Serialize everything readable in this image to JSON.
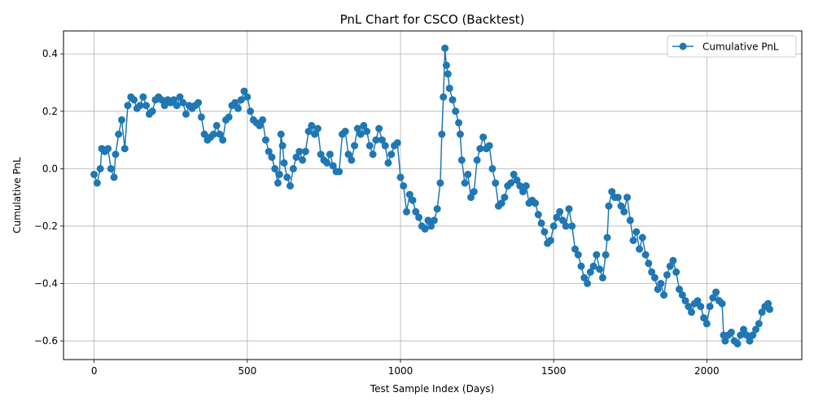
{
  "chart_data": {
    "type": "line",
    "title": "PnL Chart for CSCO (Backtest)",
    "xlabel": "Test Sample Index (Days)",
    "ylabel": "Cumulative PnL",
    "xlim": [
      -100,
      2310
    ],
    "ylim": [
      -0.665,
      0.48
    ],
    "xticks": [
      0,
      500,
      1000,
      1500,
      2000
    ],
    "xtick_labels": [
      "0",
      "500",
      "1000",
      "1500",
      "2000"
    ],
    "yticks": [
      -0.6,
      -0.4,
      -0.2,
      0.0,
      0.2,
      0.4
    ],
    "ytick_labels": [
      "−0.6",
      "−0.4",
      "−0.2",
      "0.0",
      "0.2",
      "0.4"
    ],
    "grid": true,
    "legend_position": "top-right",
    "series": [
      {
        "name": "Cumulative PnL",
        "color": "#1f77b4",
        "marker": "circle",
        "points": [
          [
            0,
            -0.02
          ],
          [
            10,
            -0.05
          ],
          [
            20,
            0.0
          ],
          [
            25,
            0.07
          ],
          [
            35,
            0.06
          ],
          [
            45,
            0.07
          ],
          [
            55,
            0.0
          ],
          [
            65,
            -0.03
          ],
          [
            70,
            0.05
          ],
          [
            80,
            0.12
          ],
          [
            90,
            0.17
          ],
          [
            100,
            0.07
          ],
          [
            110,
            0.22
          ],
          [
            120,
            0.25
          ],
          [
            130,
            0.24
          ],
          [
            140,
            0.21
          ],
          [
            150,
            0.22
          ],
          [
            160,
            0.25
          ],
          [
            170,
            0.22
          ],
          [
            180,
            0.19
          ],
          [
            190,
            0.2
          ],
          [
            200,
            0.24
          ],
          [
            210,
            0.25
          ],
          [
            220,
            0.24
          ],
          [
            230,
            0.22
          ],
          [
            240,
            0.24
          ],
          [
            250,
            0.23
          ],
          [
            260,
            0.24
          ],
          [
            270,
            0.22
          ],
          [
            280,
            0.25
          ],
          [
            290,
            0.23
          ],
          [
            300,
            0.19
          ],
          [
            310,
            0.22
          ],
          [
            320,
            0.21
          ],
          [
            330,
            0.22
          ],
          [
            340,
            0.23
          ],
          [
            350,
            0.18
          ],
          [
            360,
            0.12
          ],
          [
            370,
            0.1
          ],
          [
            380,
            0.11
          ],
          [
            390,
            0.12
          ],
          [
            400,
            0.15
          ],
          [
            410,
            0.12
          ],
          [
            420,
            0.1
          ],
          [
            430,
            0.17
          ],
          [
            440,
            0.18
          ],
          [
            450,
            0.22
          ],
          [
            460,
            0.23
          ],
          [
            470,
            0.21
          ],
          [
            480,
            0.24
          ],
          [
            490,
            0.27
          ],
          [
            500,
            0.25
          ],
          [
            510,
            0.2
          ],
          [
            520,
            0.17
          ],
          [
            530,
            0.16
          ],
          [
            540,
            0.15
          ],
          [
            550,
            0.17
          ],
          [
            560,
            0.1
          ],
          [
            570,
            0.06
          ],
          [
            580,
            0.04
          ],
          [
            590,
            0.0
          ],
          [
            600,
            -0.05
          ],
          [
            605,
            -0.02
          ],
          [
            610,
            0.12
          ],
          [
            615,
            0.08
          ],
          [
            620,
            0.02
          ],
          [
            630,
            -0.03
          ],
          [
            640,
            -0.06
          ],
          [
            650,
            0.0
          ],
          [
            660,
            0.04
          ],
          [
            670,
            0.06
          ],
          [
            680,
            0.03
          ],
          [
            690,
            0.06
          ],
          [
            700,
            0.13
          ],
          [
            710,
            0.15
          ],
          [
            720,
            0.12
          ],
          [
            730,
            0.14
          ],
          [
            740,
            0.05
          ],
          [
            750,
            0.03
          ],
          [
            760,
            0.02
          ],
          [
            770,
            0.05
          ],
          [
            780,
            0.01
          ],
          [
            790,
            -0.01
          ],
          [
            800,
            -0.01
          ],
          [
            810,
            0.12
          ],
          [
            820,
            0.13
          ],
          [
            830,
            0.05
          ],
          [
            840,
            0.03
          ],
          [
            850,
            0.08
          ],
          [
            860,
            0.14
          ],
          [
            870,
            0.12
          ],
          [
            880,
            0.15
          ],
          [
            890,
            0.13
          ],
          [
            900,
            0.08
          ],
          [
            910,
            0.05
          ],
          [
            920,
            0.1
          ],
          [
            930,
            0.14
          ],
          [
            940,
            0.1
          ],
          [
            950,
            0.08
          ],
          [
            960,
            0.02
          ],
          [
            970,
            0.05
          ],
          [
            980,
            0.08
          ],
          [
            990,
            0.09
          ],
          [
            1000,
            -0.03
          ],
          [
            1010,
            -0.06
          ],
          [
            1020,
            -0.15
          ],
          [
            1030,
            -0.09
          ],
          [
            1040,
            -0.11
          ],
          [
            1050,
            -0.15
          ],
          [
            1060,
            -0.17
          ],
          [
            1070,
            -0.2
          ],
          [
            1080,
            -0.21
          ],
          [
            1090,
            -0.18
          ],
          [
            1100,
            -0.2
          ],
          [
            1110,
            -0.18
          ],
          [
            1120,
            -0.14
          ],
          [
            1130,
            -0.05
          ],
          [
            1135,
            0.12
          ],
          [
            1140,
            0.25
          ],
          [
            1145,
            0.42
          ],
          [
            1150,
            0.36
          ],
          [
            1155,
            0.33
          ],
          [
            1160,
            0.28
          ],
          [
            1170,
            0.24
          ],
          [
            1180,
            0.2
          ],
          [
            1190,
            0.16
          ],
          [
            1195,
            0.12
          ],
          [
            1200,
            0.03
          ],
          [
            1210,
            -0.05
          ],
          [
            1220,
            -0.02
          ],
          [
            1230,
            -0.1
          ],
          [
            1240,
            -0.08
          ],
          [
            1250,
            0.03
          ],
          [
            1260,
            0.07
          ],
          [
            1270,
            0.11
          ],
          [
            1280,
            0.07
          ],
          [
            1290,
            0.08
          ],
          [
            1300,
            0.0
          ],
          [
            1310,
            -0.05
          ],
          [
            1320,
            -0.13
          ],
          [
            1330,
            -0.12
          ],
          [
            1340,
            -0.1
          ],
          [
            1350,
            -0.06
          ],
          [
            1360,
            -0.05
          ],
          [
            1370,
            -0.02
          ],
          [
            1380,
            -0.04
          ],
          [
            1390,
            -0.06
          ],
          [
            1400,
            -0.08
          ],
          [
            1410,
            -0.06
          ],
          [
            1420,
            -0.12
          ],
          [
            1430,
            -0.11
          ],
          [
            1440,
            -0.12
          ],
          [
            1450,
            -0.16
          ],
          [
            1460,
            -0.19
          ],
          [
            1470,
            -0.22
          ],
          [
            1480,
            -0.26
          ],
          [
            1490,
            -0.25
          ],
          [
            1500,
            -0.2
          ],
          [
            1510,
            -0.17
          ],
          [
            1520,
            -0.15
          ],
          [
            1530,
            -0.18
          ],
          [
            1540,
            -0.2
          ],
          [
            1550,
            -0.14
          ],
          [
            1560,
            -0.2
          ],
          [
            1570,
            -0.28
          ],
          [
            1580,
            -0.3
          ],
          [
            1590,
            -0.34
          ],
          [
            1600,
            -0.38
          ],
          [
            1610,
            -0.4
          ],
          [
            1620,
            -0.36
          ],
          [
            1630,
            -0.34
          ],
          [
            1640,
            -0.3
          ],
          [
            1650,
            -0.35
          ],
          [
            1660,
            -0.38
          ],
          [
            1670,
            -0.3
          ],
          [
            1675,
            -0.24
          ],
          [
            1680,
            -0.13
          ],
          [
            1690,
            -0.08
          ],
          [
            1700,
            -0.1
          ],
          [
            1710,
            -0.1
          ],
          [
            1720,
            -0.13
          ],
          [
            1730,
            -0.15
          ],
          [
            1740,
            -0.1
          ],
          [
            1750,
            -0.18
          ],
          [
            1760,
            -0.25
          ],
          [
            1770,
            -0.22
          ],
          [
            1780,
            -0.28
          ],
          [
            1790,
            -0.24
          ],
          [
            1800,
            -0.3
          ],
          [
            1810,
            -0.33
          ],
          [
            1820,
            -0.36
          ],
          [
            1830,
            -0.38
          ],
          [
            1840,
            -0.42
          ],
          [
            1850,
            -0.4
          ],
          [
            1860,
            -0.44
          ],
          [
            1870,
            -0.37
          ],
          [
            1880,
            -0.34
          ],
          [
            1890,
            -0.32
          ],
          [
            1900,
            -0.36
          ],
          [
            1910,
            -0.42
          ],
          [
            1920,
            -0.44
          ],
          [
            1930,
            -0.46
          ],
          [
            1940,
            -0.48
          ],
          [
            1950,
            -0.5
          ],
          [
            1960,
            -0.47
          ],
          [
            1970,
            -0.46
          ],
          [
            1980,
            -0.48
          ],
          [
            1990,
            -0.52
          ],
          [
            2000,
            -0.54
          ],
          [
            2010,
            -0.48
          ],
          [
            2020,
            -0.45
          ],
          [
            2030,
            -0.43
          ],
          [
            2040,
            -0.46
          ],
          [
            2050,
            -0.47
          ],
          [
            2055,
            -0.58
          ],
          [
            2060,
            -0.6
          ],
          [
            2070,
            -0.58
          ],
          [
            2080,
            -0.57
          ],
          [
            2090,
            -0.6
          ],
          [
            2100,
            -0.61
          ],
          [
            2110,
            -0.58
          ],
          [
            2120,
            -0.56
          ],
          [
            2130,
            -0.58
          ],
          [
            2140,
            -0.6
          ],
          [
            2150,
            -0.58
          ],
          [
            2160,
            -0.56
          ],
          [
            2170,
            -0.54
          ],
          [
            2180,
            -0.5
          ],
          [
            2190,
            -0.48
          ],
          [
            2200,
            -0.47
          ],
          [
            2205,
            -0.49
          ]
        ]
      }
    ]
  }
}
